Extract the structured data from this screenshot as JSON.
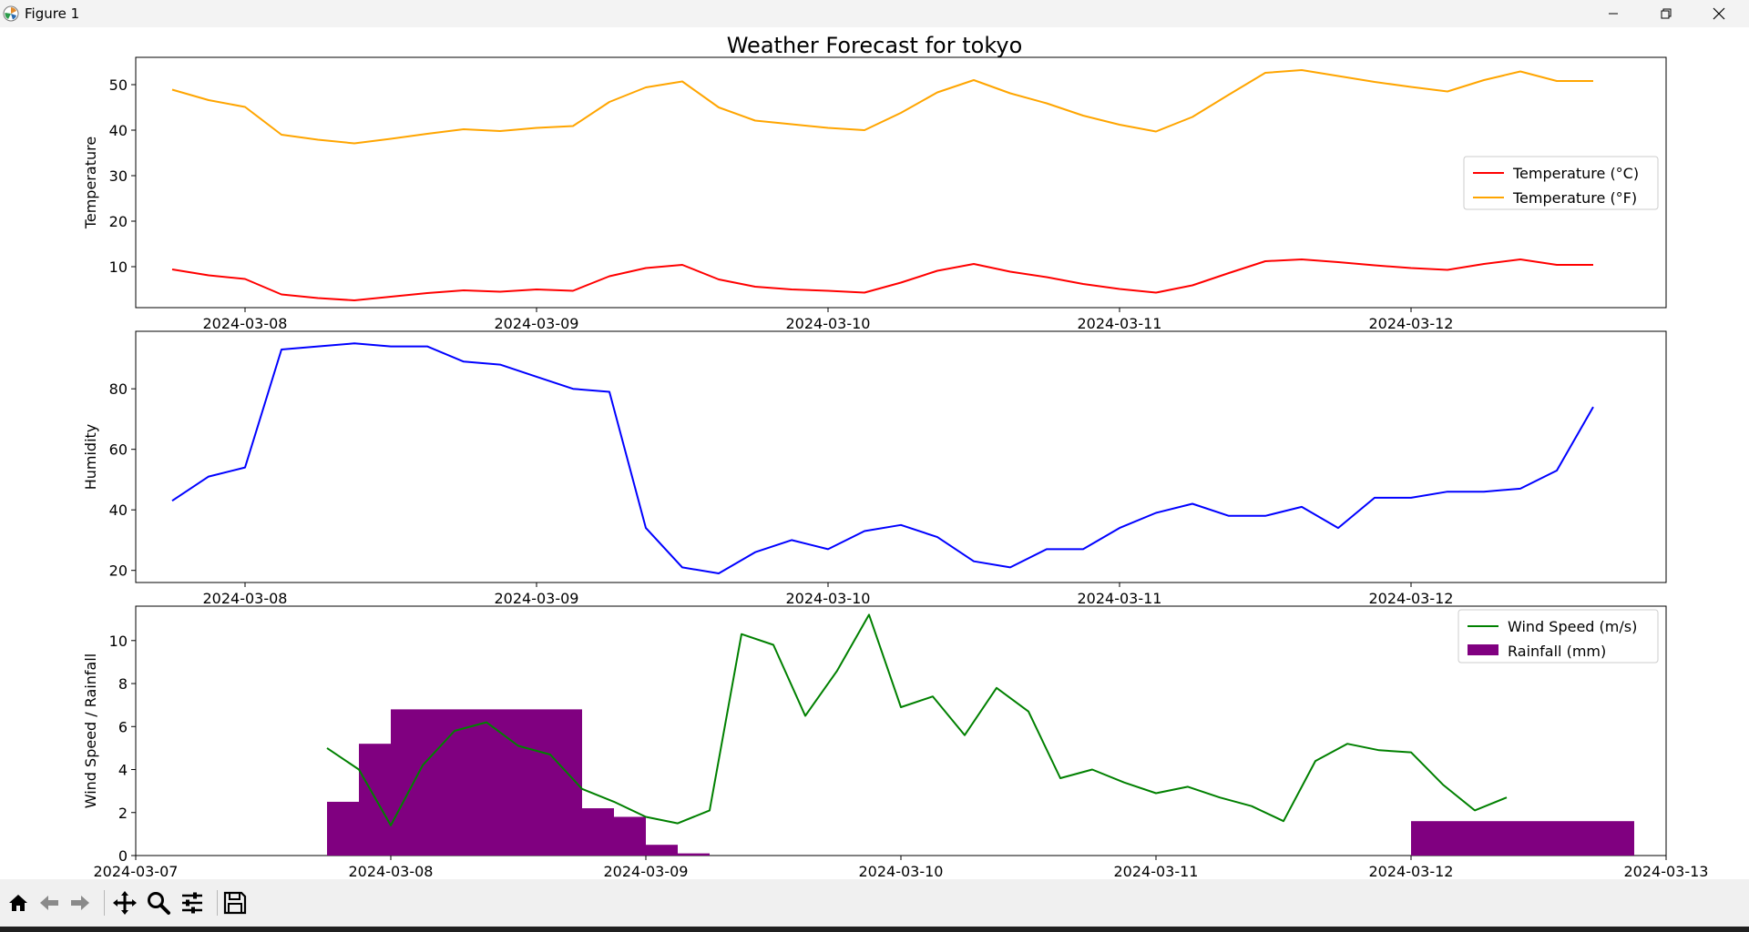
{
  "window": {
    "title": "Figure 1",
    "controls": [
      "minimize-icon",
      "restore-icon",
      "close-icon"
    ]
  },
  "toolbar": {
    "buttons": [
      "home-icon",
      "back-arrow-icon",
      "forward-arrow-icon",
      "pan-icon",
      "zoom-icon",
      "configure-subplots-icon",
      "save-icon"
    ]
  },
  "colors": {
    "temp_c": "#ff0000",
    "temp_f": "#ffa500",
    "humidity": "#0000ff",
    "wind": "#008000",
    "rain": "#800080"
  },
  "chart_data": [
    {
      "type": "line",
      "title": "Weather Forecast for tokyo",
      "ylabel": "Temperature",
      "xlabel": "",
      "x_ticks": [
        "2024-03-08",
        "2024-03-09",
        "2024-03-10",
        "2024-03-11",
        "2024-03-12"
      ],
      "y_ticks": [
        10,
        20,
        30,
        40,
        50
      ],
      "xlim": [
        "2024-03-07 15:00",
        "2024-03-12 21:00"
      ],
      "ylim": [
        1,
        56
      ],
      "x": [
        "2024-03-07 18:00",
        "2024-03-07 21:00",
        "2024-03-08 00:00",
        "2024-03-08 03:00",
        "2024-03-08 06:00",
        "2024-03-08 09:00",
        "2024-03-08 12:00",
        "2024-03-08 15:00",
        "2024-03-08 18:00",
        "2024-03-08 21:00",
        "2024-03-09 00:00",
        "2024-03-09 03:00",
        "2024-03-09 06:00",
        "2024-03-09 09:00",
        "2024-03-09 12:00",
        "2024-03-09 15:00",
        "2024-03-09 18:00",
        "2024-03-09 21:00",
        "2024-03-10 00:00",
        "2024-03-10 03:00",
        "2024-03-10 06:00",
        "2024-03-10 09:00",
        "2024-03-10 12:00",
        "2024-03-10 15:00",
        "2024-03-10 18:00",
        "2024-03-10 21:00",
        "2024-03-11 00:00",
        "2024-03-11 03:00",
        "2024-03-11 06:00",
        "2024-03-11 09:00",
        "2024-03-11 12:00",
        "2024-03-11 15:00",
        "2024-03-11 18:00",
        "2024-03-11 21:00",
        "2024-03-12 00:00",
        "2024-03-12 03:00",
        "2024-03-12 06:00",
        "2024-03-12 09:00",
        "2024-03-12 12:00",
        "2024-03-12 15:00"
      ],
      "series": [
        {
          "name": "Temperature (°C)",
          "color": "#ff0000",
          "values": [
            9.4,
            8.1,
            7.3,
            3.9,
            3.1,
            2.6,
            3.4,
            4.2,
            4.8,
            4.5,
            5.0,
            4.7,
            7.9,
            9.7,
            10.4,
            7.2,
            5.6,
            5.0,
            4.7,
            4.3,
            6.5,
            9.1,
            10.6,
            8.9,
            7.7,
            6.2,
            5.1,
            4.3,
            5.9,
            8.6,
            11.2,
            11.6,
            11.0,
            10.3,
            9.7,
            9.3,
            10.6,
            11.6,
            10.4,
            10.4
          ]
        },
        {
          "name": "Temperature (°F)",
          "color": "#ffa500",
          "values": [
            48.9,
            46.6,
            45.1,
            39.0,
            37.9,
            37.1,
            38.1,
            39.2,
            40.2,
            39.8,
            40.5,
            40.9,
            46.2,
            49.4,
            50.7,
            45.0,
            42.1,
            41.3,
            40.5,
            40.0,
            43.8,
            48.3,
            51.0,
            48.1,
            45.9,
            43.2,
            41.2,
            39.7,
            42.9,
            47.8,
            52.6,
            53.2,
            51.9,
            50.6,
            49.5,
            48.5,
            51.0,
            52.9,
            50.8,
            50.8
          ]
        }
      ],
      "legend": "center-right"
    },
    {
      "type": "line",
      "ylabel": "Humidity",
      "xlabel": "",
      "x_ticks": [
        "2024-03-08",
        "2024-03-09",
        "2024-03-10",
        "2024-03-11",
        "2024-03-12"
      ],
      "y_ticks": [
        20,
        40,
        60,
        80
      ],
      "xlim": [
        "2024-03-07 15:00",
        "2024-03-12 21:00"
      ],
      "ylim": [
        16,
        99
      ],
      "x": [
        "2024-03-07 18:00",
        "2024-03-07 21:00",
        "2024-03-08 00:00",
        "2024-03-08 03:00",
        "2024-03-08 06:00",
        "2024-03-08 09:00",
        "2024-03-08 12:00",
        "2024-03-08 15:00",
        "2024-03-08 18:00",
        "2024-03-08 21:00",
        "2024-03-09 00:00",
        "2024-03-09 03:00",
        "2024-03-09 06:00",
        "2024-03-09 09:00",
        "2024-03-09 12:00",
        "2024-03-09 15:00",
        "2024-03-09 18:00",
        "2024-03-09 21:00",
        "2024-03-10 00:00",
        "2024-03-10 03:00",
        "2024-03-10 06:00",
        "2024-03-10 09:00",
        "2024-03-10 12:00",
        "2024-03-10 15:00",
        "2024-03-10 18:00",
        "2024-03-10 21:00",
        "2024-03-11 00:00",
        "2024-03-11 03:00",
        "2024-03-11 06:00",
        "2024-03-11 09:00",
        "2024-03-11 12:00",
        "2024-03-11 15:00",
        "2024-03-11 18:00",
        "2024-03-11 21:00",
        "2024-03-12 00:00",
        "2024-03-12 03:00",
        "2024-03-12 06:00",
        "2024-03-12 09:00",
        "2024-03-12 12:00",
        "2024-03-12 15:00"
      ],
      "series": [
        {
          "name": "Humidity",
          "color": "#0000ff",
          "values": [
            43,
            51,
            54,
            93,
            94,
            95,
            94,
            94,
            89,
            88,
            84,
            80,
            79,
            34,
            21,
            19,
            26,
            30,
            27,
            33,
            35,
            31,
            23,
            21,
            27,
            27,
            34,
            39,
            42,
            38,
            38,
            41,
            34,
            44,
            44,
            46,
            46,
            47,
            53,
            74
          ]
        }
      ]
    },
    {
      "type": "line",
      "ylabel": "Wind Speed / Rainfall",
      "xlabel": "",
      "x_ticks": [
        "2024-03-07",
        "2024-03-08",
        "2024-03-09",
        "2024-03-10",
        "2024-03-11",
        "2024-03-12",
        "2024-03-13"
      ],
      "y_ticks": [
        0,
        2,
        4,
        6,
        8,
        10
      ],
      "xlim": [
        "2024-03-07 00:00",
        "2024-03-13 00:00"
      ],
      "ylim": [
        0,
        11.6
      ],
      "legend": "top-right",
      "series": [
        {
          "name": "Wind Speed (m/s)",
          "type": "line",
          "color": "#008000",
          "x": [
            "2024-03-07 18:00",
            "2024-03-07 21:00",
            "2024-03-08 00:00",
            "2024-03-08 03:00",
            "2024-03-08 06:00",
            "2024-03-08 09:00",
            "2024-03-08 12:00",
            "2024-03-08 15:00",
            "2024-03-08 18:00",
            "2024-03-08 21:00",
            "2024-03-09 00:00",
            "2024-03-09 03:00",
            "2024-03-09 06:00",
            "2024-03-09 09:00",
            "2024-03-09 12:00",
            "2024-03-09 15:00",
            "2024-03-09 18:00",
            "2024-03-09 21:00",
            "2024-03-10 00:00",
            "2024-03-10 03:00",
            "2024-03-10 06:00",
            "2024-03-10 09:00",
            "2024-03-10 12:00",
            "2024-03-10 15:00",
            "2024-03-10 18:00",
            "2024-03-10 21:00",
            "2024-03-11 00:00",
            "2024-03-11 03:00",
            "2024-03-11 06:00",
            "2024-03-11 09:00",
            "2024-03-11 12:00",
            "2024-03-11 15:00",
            "2024-03-11 18:00",
            "2024-03-11 21:00",
            "2024-03-12 00:00",
            "2024-03-12 03:00",
            "2024-03-12 06:00",
            "2024-03-12 09:00",
            "2024-03-12 12:00",
            "2024-03-12 15:00"
          ],
          "values": [
            null,
            null,
            null,
            null,
            null,
            null,
            null,
            null,
            null,
            null,
            null,
            null,
            null,
            null,
            null,
            null,
            null,
            null,
            null,
            null,
            null,
            null,
            null,
            null,
            null,
            null,
            null,
            null,
            null,
            null,
            null,
            null,
            null,
            null,
            null,
            null,
            null,
            null,
            null,
            null
          ]
        },
        {
          "name": "Rainfall (mm)",
          "type": "bar",
          "color": "#800080",
          "bars": [
            {
              "start": "2024-03-07 18:00",
              "end": "2024-03-07 21:00",
              "value": 2.5
            },
            {
              "start": "2024-03-07 21:00",
              "end": "2024-03-08 00:00",
              "value": 5.2
            },
            {
              "start": "2024-03-08 00:00",
              "end": "2024-03-08 18:00",
              "value": 6.8
            },
            {
              "start": "2024-03-08 18:00",
              "end": "2024-03-08 21:00",
              "value": 2.2
            },
            {
              "start": "2024-03-08 21:00",
              "end": "2024-03-09 00:00",
              "value": 1.8
            },
            {
              "start": "2024-03-09 00:00",
              "end": "2024-03-09 03:00",
              "value": 0.5
            },
            {
              "start": "2024-03-09 03:00",
              "end": "2024-03-09 06:00",
              "value": 0.1
            },
            {
              "start": "2024-03-12 00:00",
              "end": "2024-03-12 21:00",
              "value": 1.6
            }
          ]
        }
      ],
      "wind_points": {
        "x": [
          "2024-03-07 18:00",
          "2024-03-07 21:00",
          "2024-03-08 00:00",
          "2024-03-08 03:00",
          "2024-03-08 06:00",
          "2024-03-08 09:00",
          "2024-03-08 12:00",
          "2024-03-08 15:00",
          "2024-03-08 18:00",
          "2024-03-08 21:00",
          "2024-03-09 00:00",
          "2024-03-09 03:00",
          "2024-03-09 06:00",
          "2024-03-09 09:00",
          "2024-03-09 12:00",
          "2024-03-09 15:00",
          "2024-03-09 18:00",
          "2024-03-09 21:00",
          "2024-03-10 00:00",
          "2024-03-10 03:00",
          "2024-03-10 06:00",
          "2024-03-10 09:00",
          "2024-03-10 12:00",
          "2024-03-10 15:00",
          "2024-03-10 18:00",
          "2024-03-10 21:00",
          "2024-03-11 00:00",
          "2024-03-11 03:00",
          "2024-03-11 06:00",
          "2024-03-11 09:00",
          "2024-03-11 12:00",
          "2024-03-11 15:00",
          "2024-03-11 18:00",
          "2024-03-11 21:00",
          "2024-03-12 00:00",
          "2024-03-12 03:00",
          "2024-03-12 06:00",
          "2024-03-12 09:00"
        ],
        "values": [
          5.0,
          4.0,
          1.4,
          4.2,
          5.8,
          6.2,
          5.1,
          4.7,
          3.1,
          2.5,
          1.8,
          1.5,
          2.1,
          10.3,
          9.8,
          6.5,
          8.6,
          11.2,
          6.9,
          7.4,
          5.6,
          7.8,
          6.7,
          3.6,
          4.0,
          3.4,
          2.9,
          3.2,
          2.7,
          2.3,
          1.6,
          4.4,
          5.2,
          4.9,
          4.8,
          3.3,
          2.1,
          2.7
        ]
      }
    }
  ]
}
